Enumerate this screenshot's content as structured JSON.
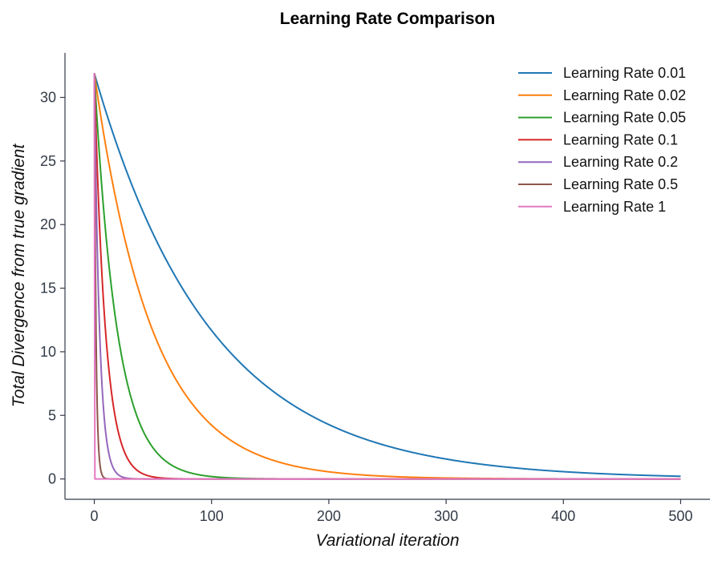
{
  "chart_data": {
    "type": "line",
    "title": "Learning Rate Comparison",
    "xlabel": "Variational iteration",
    "ylabel": "Total Divergence from true gradient",
    "xlim": [
      -25,
      525
    ],
    "ylim": [
      -1.6,
      33.5
    ],
    "xticks": [
      0,
      100,
      200,
      300,
      400,
      500
    ],
    "yticks": [
      0,
      5,
      10,
      15,
      20,
      25,
      30
    ],
    "grid": false,
    "legend_position": "top-right",
    "x_range": [
      0,
      500
    ],
    "initial_value": 31.9,
    "series": [
      {
        "name": "Learning Rate 0.01",
        "learning_rate": 0.01,
        "color": "#1f77b4"
      },
      {
        "name": "Learning Rate 0.02",
        "learning_rate": 0.02,
        "color": "#ff7f0e"
      },
      {
        "name": "Learning Rate 0.05",
        "learning_rate": 0.05,
        "color": "#2ca02c"
      },
      {
        "name": "Learning Rate 0.1",
        "learning_rate": 0.1,
        "color": "#d62728"
      },
      {
        "name": "Learning Rate 0.2",
        "learning_rate": 0.2,
        "color": "#9467bd"
      },
      {
        "name": "Learning Rate 0.5",
        "learning_rate": 0.5,
        "color": "#8c564b"
      },
      {
        "name": "Learning Rate 1",
        "learning_rate": 1,
        "color": "#e377c2"
      }
    ]
  }
}
